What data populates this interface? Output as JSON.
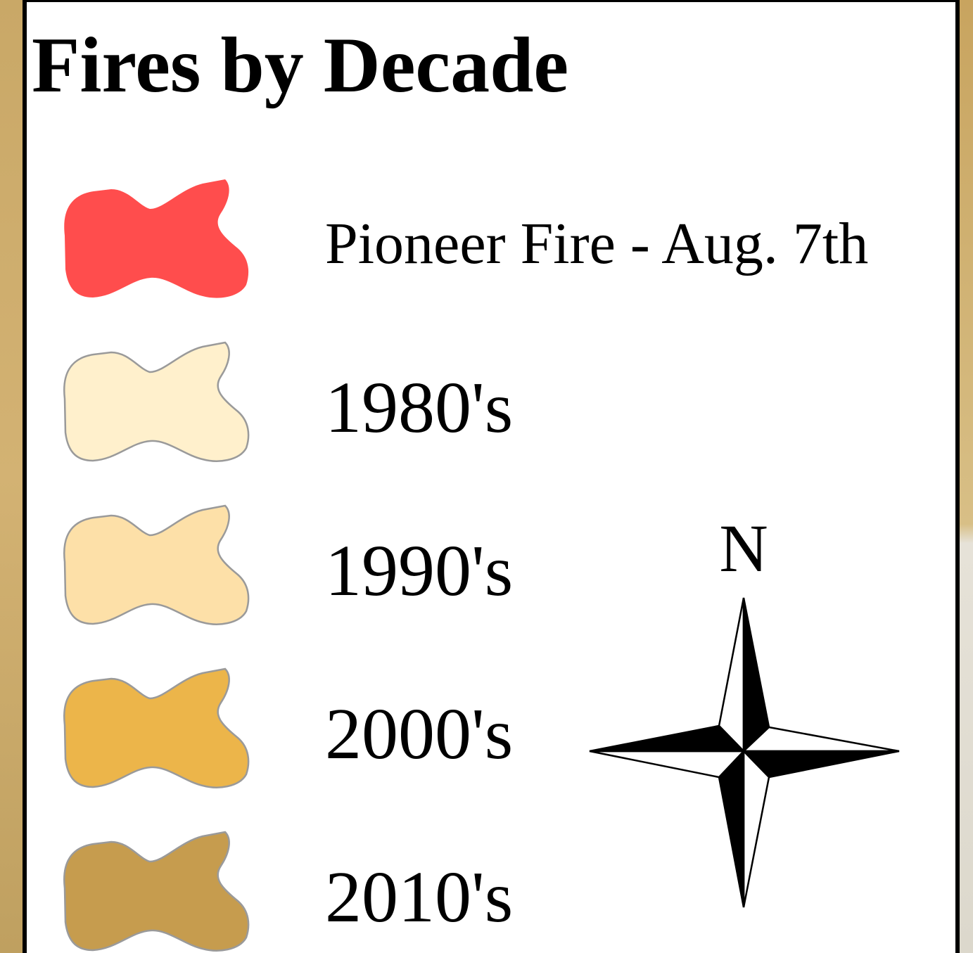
{
  "title": "Fires by Decade",
  "legend": [
    {
      "label": "Pioneer Fire - Aug. 7th",
      "color": "#ff4d4d"
    },
    {
      "label": "1980's",
      "color": "#fff0cc"
    },
    {
      "label": "1990's",
      "color": "#fde0a8"
    },
    {
      "label": "2000's",
      "color": "#ecb54a"
    },
    {
      "label": "2010's",
      "color": "#c69c4e"
    }
  ],
  "north_arrow": {
    "label": "N"
  }
}
